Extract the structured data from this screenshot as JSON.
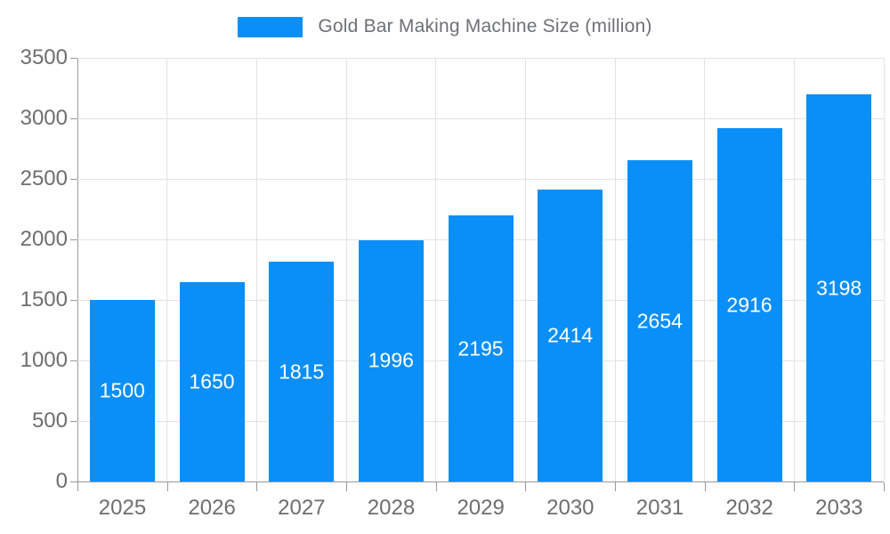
{
  "legend": {
    "label": "Gold Bar Making Machine Size (million)"
  },
  "chart_data": {
    "type": "bar",
    "title": "Gold Bar Making Machine Size (million)",
    "categories": [
      "2025",
      "2026",
      "2027",
      "2028",
      "2029",
      "2030",
      "2031",
      "2032",
      "2033"
    ],
    "values": [
      1500,
      1650,
      1815,
      1996,
      2195,
      2414,
      2654,
      2916,
      3198
    ],
    "xlabel": "",
    "ylabel": "",
    "ylim": [
      0,
      3500
    ],
    "ytick_step": 500,
    "yticks": [
      "0",
      "500",
      "1000",
      "1500",
      "2000",
      "2500",
      "3000",
      "3500"
    ],
    "grid": true,
    "legend_position": "top-center",
    "colors": {
      "bar": "#0A8FF8",
      "value_label": "#FFFFFF",
      "axis_label": "#6E6E6E",
      "legend_label": "#6E7079",
      "gridline": "#E3E3E3",
      "axis_line": "#999999",
      "background": "#FFFFFF"
    }
  }
}
